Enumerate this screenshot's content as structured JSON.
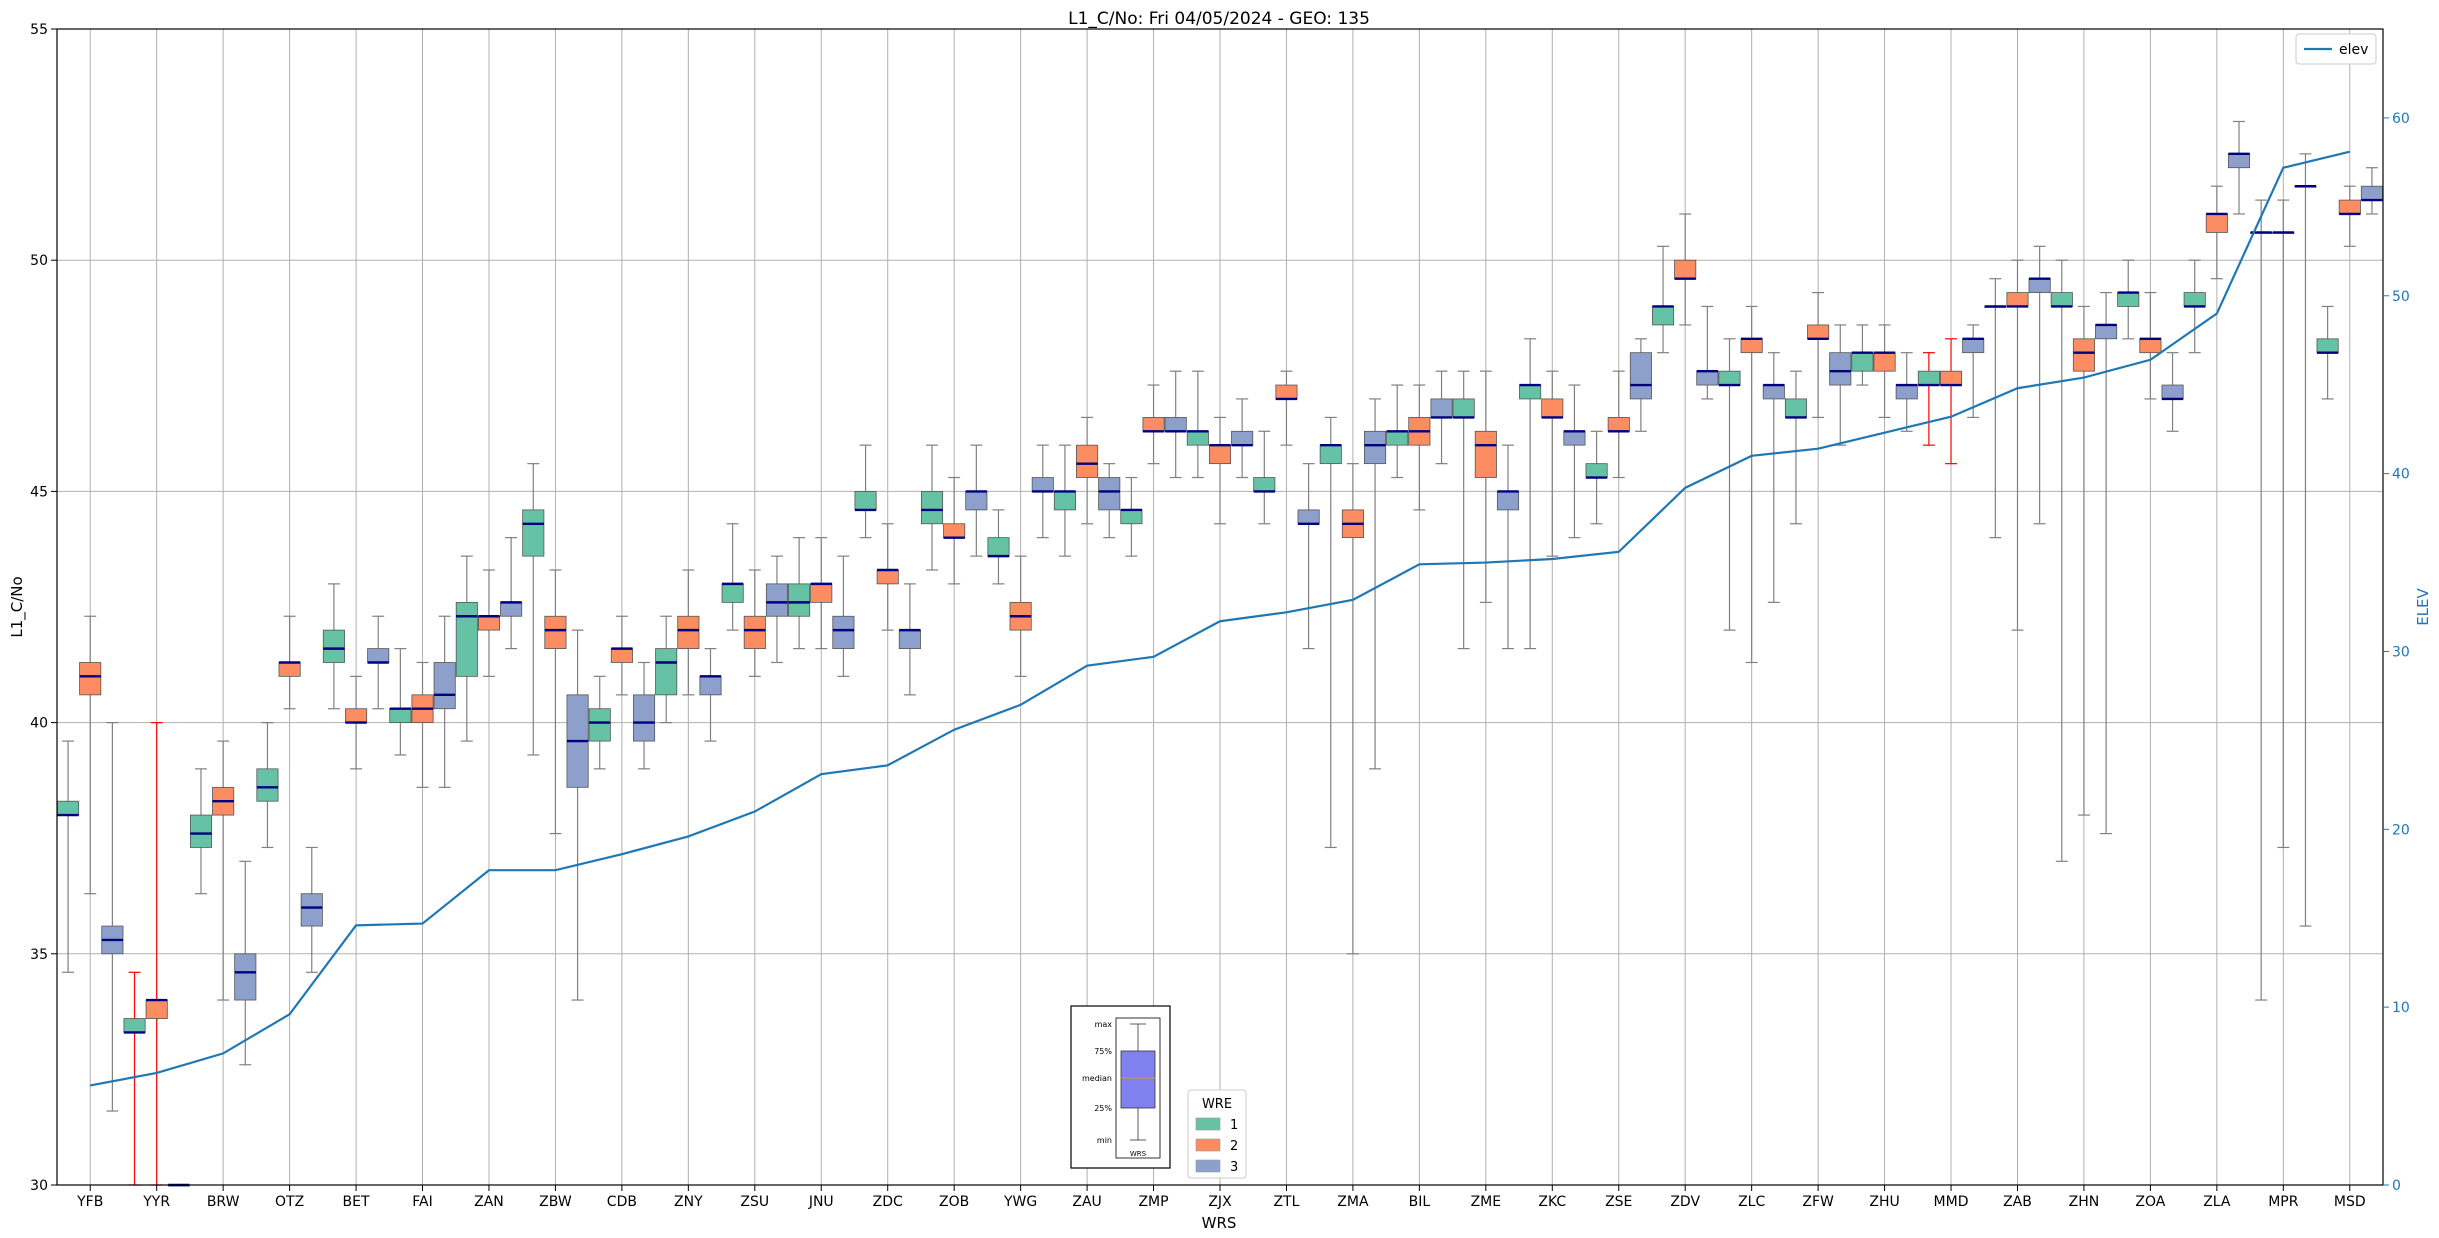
{
  "chart_data": {
    "type": "box",
    "title": "L1_C/No: Fri 04/05/2024 - GEO: 135",
    "xlabel": "WRS",
    "ylabel": "L1_C/No",
    "y2label": "ELEV",
    "ylim": [
      30,
      55
    ],
    "y2lim": [
      0,
      65
    ],
    "yticks": [
      "30",
      "35",
      "40",
      "45",
      "50",
      "55"
    ],
    "y2ticks": [
      "0",
      "10",
      "20",
      "30",
      "40",
      "50",
      "60"
    ],
    "grid": true,
    "categories": [
      "YFB",
      "YYR",
      "BRW",
      "OTZ",
      "BET",
      "FAI",
      "ZAN",
      "ZBW",
      "CDB",
      "ZNY",
      "ZSU",
      "JNU",
      "ZDC",
      "ZOB",
      "YWG",
      "ZAU",
      "ZMP",
      "ZJX",
      "ZTL",
      "ZMA",
      "BIL",
      "ZME",
      "ZKC",
      "ZSE",
      "ZDV",
      "ZLC",
      "ZFW",
      "ZHU",
      "MMD",
      "ZAB",
      "ZHN",
      "ZOA",
      "ZLA",
      "MPR",
      "MSD"
    ],
    "colors": {
      "wre1": "#66c2a5",
      "wre2": "#fc8d62",
      "wre3": "#8da0cb",
      "elev": "#1f77b4",
      "median": "#000080",
      "whisker": "#808080",
      "highlight": "#ff0000"
    },
    "wre_legend": {
      "title": "WRE",
      "entries": [
        "1",
        "2",
        "3"
      ],
      "placement": "bottom-center"
    },
    "elev_legend": {
      "entries": [
        "elev"
      ],
      "placement": "top-right"
    },
    "boxplot_key": {
      "labels": [
        "max",
        "75%",
        "median",
        "25%",
        "min"
      ],
      "xlabel": "WRS"
    },
    "elev": [
      5.6,
      6.3,
      7.4,
      9.6,
      14.6,
      14.7,
      17.7,
      17.7,
      18.6,
      19.6,
      21.0,
      23.1,
      23.6,
      25.6,
      27.0,
      29.2,
      29.7,
      31.7,
      32.2,
      32.9,
      34.9,
      35.0,
      35.2,
      35.6,
      39.2,
      41.0,
      41.4,
      42.3,
      43.2,
      44.8,
      45.4,
      46.4,
      49.0,
      57.2,
      58.1
    ],
    "series": [
      {
        "cat": "YFB",
        "wre": 1,
        "min": 34.6,
        "q1": 38.0,
        "med": 38.0,
        "q3": 38.3,
        "max": 39.6
      },
      {
        "cat": "YFB",
        "wre": 2,
        "min": 36.3,
        "q1": 40.6,
        "med": 41.0,
        "q3": 41.3,
        "max": 42.3
      },
      {
        "cat": "YFB",
        "wre": 3,
        "min": 31.6,
        "q1": 35.0,
        "med": 35.3,
        "q3": 35.6,
        "max": 40.0
      },
      {
        "cat": "YYR",
        "wre": 1,
        "min": 30.0,
        "q1": 33.3,
        "med": 33.3,
        "q3": 33.6,
        "max": 34.6,
        "highlight": true
      },
      {
        "cat": "YYR",
        "wre": 2,
        "min": 30.0,
        "q1": 33.6,
        "med": 34.0,
        "q3": 34.0,
        "max": 40.0,
        "highlight": true
      },
      {
        "cat": "YYR",
        "wre": 3,
        "min": 30.0,
        "q1": 30.0,
        "med": 30.0,
        "q3": 30.0,
        "max": 30.0
      },
      {
        "cat": "BRW",
        "wre": 1,
        "min": 36.3,
        "q1": 37.3,
        "med": 37.6,
        "q3": 38.0,
        "max": 39.0
      },
      {
        "cat": "BRW",
        "wre": 2,
        "min": 34.0,
        "q1": 38.0,
        "med": 38.3,
        "q3": 38.6,
        "max": 39.6
      },
      {
        "cat": "BRW",
        "wre": 3,
        "min": 32.6,
        "q1": 34.0,
        "med": 34.6,
        "q3": 35.0,
        "max": 37.0
      },
      {
        "cat": "OTZ",
        "wre": 1,
        "min": 37.3,
        "q1": 38.3,
        "med": 38.6,
        "q3": 39.0,
        "max": 40.0
      },
      {
        "cat": "OTZ",
        "wre": 2,
        "min": 40.3,
        "q1": 41.0,
        "med": 41.3,
        "q3": 41.3,
        "max": 42.3
      },
      {
        "cat": "OTZ",
        "wre": 3,
        "min": 34.6,
        "q1": 35.6,
        "med": 36.0,
        "q3": 36.3,
        "max": 37.3
      },
      {
        "cat": "BET",
        "wre": 1,
        "min": 40.3,
        "q1": 41.3,
        "med": 41.6,
        "q3": 42.0,
        "max": 43.0
      },
      {
        "cat": "BET",
        "wre": 2,
        "min": 39.0,
        "q1": 40.0,
        "med": 40.0,
        "q3": 40.3,
        "max": 41.0
      },
      {
        "cat": "BET",
        "wre": 3,
        "min": 40.3,
        "q1": 41.3,
        "med": 41.3,
        "q3": 41.6,
        "max": 42.3
      },
      {
        "cat": "FAI",
        "wre": 1,
        "min": 39.3,
        "q1": 40.0,
        "med": 40.3,
        "q3": 40.3,
        "max": 41.6
      },
      {
        "cat": "FAI",
        "wre": 2,
        "min": 38.6,
        "q1": 40.0,
        "med": 40.3,
        "q3": 40.6,
        "max": 41.3
      },
      {
        "cat": "FAI",
        "wre": 3,
        "min": 38.6,
        "q1": 40.3,
        "med": 40.6,
        "q3": 41.3,
        "max": 42.3
      },
      {
        "cat": "ZAN",
        "wre": 1,
        "min": 39.6,
        "q1": 41.0,
        "med": 42.3,
        "q3": 42.6,
        "max": 43.6
      },
      {
        "cat": "ZAN",
        "wre": 2,
        "min": 41.0,
        "q1": 42.0,
        "med": 42.3,
        "q3": 42.3,
        "max": 43.3
      },
      {
        "cat": "ZAN",
        "wre": 3,
        "min": 41.6,
        "q1": 42.3,
        "med": 42.6,
        "q3": 42.6,
        "max": 44.0
      },
      {
        "cat": "ZBW",
        "wre": 1,
        "min": 39.3,
        "q1": 43.6,
        "med": 44.3,
        "q3": 44.6,
        "max": 45.6
      },
      {
        "cat": "ZBW",
        "wre": 2,
        "min": 37.6,
        "q1": 41.6,
        "med": 42.0,
        "q3": 42.3,
        "max": 43.3
      },
      {
        "cat": "ZBW",
        "wre": 3,
        "min": 34.0,
        "q1": 38.6,
        "med": 39.6,
        "q3": 40.6,
        "max": 42.0
      },
      {
        "cat": "CDB",
        "wre": 1,
        "min": 39.0,
        "q1": 39.6,
        "med": 40.0,
        "q3": 40.3,
        "max": 41.0
      },
      {
        "cat": "CDB",
        "wre": 2,
        "min": 40.6,
        "q1": 41.3,
        "med": 41.6,
        "q3": 41.6,
        "max": 42.3
      },
      {
        "cat": "CDB",
        "wre": 3,
        "min": 39.0,
        "q1": 39.6,
        "med": 40.0,
        "q3": 40.6,
        "max": 41.3
      },
      {
        "cat": "ZNY",
        "wre": 1,
        "min": 40.0,
        "q1": 40.6,
        "med": 41.3,
        "q3": 41.6,
        "max": 42.3
      },
      {
        "cat": "ZNY",
        "wre": 2,
        "min": 40.6,
        "q1": 41.6,
        "med": 42.0,
        "q3": 42.3,
        "max": 43.3
      },
      {
        "cat": "ZNY",
        "wre": 3,
        "min": 39.6,
        "q1": 40.6,
        "med": 41.0,
        "q3": 41.0,
        "max": 41.6
      },
      {
        "cat": "ZSU",
        "wre": 1,
        "min": 42.0,
        "q1": 42.6,
        "med": 43.0,
        "q3": 43.0,
        "max": 44.3
      },
      {
        "cat": "ZSU",
        "wre": 2,
        "min": 41.0,
        "q1": 41.6,
        "med": 42.0,
        "q3": 42.3,
        "max": 43.3
      },
      {
        "cat": "ZSU",
        "wre": 3,
        "min": 41.3,
        "q1": 42.3,
        "med": 42.6,
        "q3": 43.0,
        "max": 43.6
      },
      {
        "cat": "JNU",
        "wre": 1,
        "min": 41.6,
        "q1": 42.3,
        "med": 42.6,
        "q3": 43.0,
        "max": 44.0
      },
      {
        "cat": "JNU",
        "wre": 2,
        "min": 41.6,
        "q1": 42.6,
        "med": 43.0,
        "q3": 43.0,
        "max": 44.0
      },
      {
        "cat": "JNU",
        "wre": 3,
        "min": 41.0,
        "q1": 41.6,
        "med": 42.0,
        "q3": 42.3,
        "max": 43.6
      },
      {
        "cat": "ZDC",
        "wre": 1,
        "min": 44.0,
        "q1": 44.6,
        "med": 44.6,
        "q3": 45.0,
        "max": 46.0
      },
      {
        "cat": "ZDC",
        "wre": 2,
        "min": 42.0,
        "q1": 43.0,
        "med": 43.3,
        "q3": 43.3,
        "max": 44.3
      },
      {
        "cat": "ZDC",
        "wre": 3,
        "min": 40.6,
        "q1": 41.6,
        "med": 42.0,
        "q3": 42.0,
        "max": 43.0
      },
      {
        "cat": "ZOB",
        "wre": 1,
        "min": 43.3,
        "q1": 44.3,
        "med": 44.6,
        "q3": 45.0,
        "max": 46.0
      },
      {
        "cat": "ZOB",
        "wre": 2,
        "min": 43.0,
        "q1": 44.0,
        "med": 44.0,
        "q3": 44.3,
        "max": 45.3
      },
      {
        "cat": "ZOB",
        "wre": 3,
        "min": 43.6,
        "q1": 44.6,
        "med": 45.0,
        "q3": 45.0,
        "max": 46.0
      },
      {
        "cat": "YWG",
        "wre": 1,
        "min": 43.0,
        "q1": 43.6,
        "med": 43.6,
        "q3": 44.0,
        "max": 44.6
      },
      {
        "cat": "YWG",
        "wre": 2,
        "min": 41.0,
        "q1": 42.0,
        "med": 42.3,
        "q3": 42.6,
        "max": 43.6
      },
      {
        "cat": "YWG",
        "wre": 3,
        "min": 44.0,
        "q1": 45.0,
        "med": 45.0,
        "q3": 45.3,
        "max": 46.0
      },
      {
        "cat": "ZAU",
        "wre": 1,
        "min": 43.6,
        "q1": 44.6,
        "med": 45.0,
        "q3": 45.0,
        "max": 46.0
      },
      {
        "cat": "ZAU",
        "wre": 2,
        "min": 44.3,
        "q1": 45.3,
        "med": 45.6,
        "q3": 46.0,
        "max": 46.6
      },
      {
        "cat": "ZAU",
        "wre": 3,
        "min": 44.0,
        "q1": 44.6,
        "med": 45.0,
        "q3": 45.3,
        "max": 45.6
      },
      {
        "cat": "ZMP",
        "wre": 1,
        "min": 43.6,
        "q1": 44.3,
        "med": 44.6,
        "q3": 44.6,
        "max": 45.3
      },
      {
        "cat": "ZMP",
        "wre": 2,
        "min": 45.6,
        "q1": 46.3,
        "med": 46.3,
        "q3": 46.6,
        "max": 47.3
      },
      {
        "cat": "ZMP",
        "wre": 3,
        "min": 45.3,
        "q1": 46.3,
        "med": 46.3,
        "q3": 46.6,
        "max": 47.6
      },
      {
        "cat": "ZJX",
        "wre": 1,
        "min": 45.3,
        "q1": 46.0,
        "med": 46.3,
        "q3": 46.3,
        "max": 47.6
      },
      {
        "cat": "ZJX",
        "wre": 2,
        "min": 44.3,
        "q1": 45.6,
        "med": 46.0,
        "q3": 46.0,
        "max": 46.6
      },
      {
        "cat": "ZJX",
        "wre": 3,
        "min": 45.3,
        "q1": 46.0,
        "med": 46.0,
        "q3": 46.3,
        "max": 47.0
      },
      {
        "cat": "ZTL",
        "wre": 1,
        "min": 44.3,
        "q1": 45.0,
        "med": 45.0,
        "q3": 45.3,
        "max": 46.3
      },
      {
        "cat": "ZTL",
        "wre": 2,
        "min": 46.0,
        "q1": 47.0,
        "med": 47.0,
        "q3": 47.3,
        "max": 47.6
      },
      {
        "cat": "ZTL",
        "wre": 3,
        "min": 41.6,
        "q1": 44.3,
        "med": 44.3,
        "q3": 44.6,
        "max": 45.6
      },
      {
        "cat": "ZMA",
        "wre": 1,
        "min": 37.3,
        "q1": 45.6,
        "med": 46.0,
        "q3": 46.0,
        "max": 46.6
      },
      {
        "cat": "ZMA",
        "wre": 2,
        "min": 35.0,
        "q1": 44.0,
        "med": 44.3,
        "q3": 44.6,
        "max": 45.6
      },
      {
        "cat": "ZMA",
        "wre": 3,
        "min": 39.0,
        "q1": 45.6,
        "med": 46.0,
        "q3": 46.3,
        "max": 47.0
      },
      {
        "cat": "BIL",
        "wre": 1,
        "min": 45.3,
        "q1": 46.0,
        "med": 46.3,
        "q3": 46.3,
        "max": 47.3
      },
      {
        "cat": "BIL",
        "wre": 2,
        "min": 44.6,
        "q1": 46.0,
        "med": 46.3,
        "q3": 46.6,
        "max": 47.3
      },
      {
        "cat": "BIL",
        "wre": 3,
        "min": 45.6,
        "q1": 46.6,
        "med": 46.6,
        "q3": 47.0,
        "max": 47.6
      },
      {
        "cat": "ZME",
        "wre": 1,
        "min": 41.6,
        "q1": 46.6,
        "med": 46.6,
        "q3": 47.0,
        "max": 47.6
      },
      {
        "cat": "ZME",
        "wre": 2,
        "min": 42.6,
        "q1": 45.3,
        "med": 46.0,
        "q3": 46.3,
        "max": 47.6
      },
      {
        "cat": "ZME",
        "wre": 3,
        "min": 41.6,
        "q1": 44.6,
        "med": 45.0,
        "q3": 45.0,
        "max": 46.0
      },
      {
        "cat": "ZKC",
        "wre": 1,
        "min": 41.6,
        "q1": 47.0,
        "med": 47.3,
        "q3": 47.3,
        "max": 48.3
      },
      {
        "cat": "ZKC",
        "wre": 2,
        "min": 43.6,
        "q1": 46.6,
        "med": 46.6,
        "q3": 47.0,
        "max": 47.6
      },
      {
        "cat": "ZKC",
        "wre": 3,
        "min": 44.0,
        "q1": 46.0,
        "med": 46.3,
        "q3": 46.3,
        "max": 47.3
      },
      {
        "cat": "ZSE",
        "wre": 1,
        "min": 44.3,
        "q1": 45.3,
        "med": 45.3,
        "q3": 45.6,
        "max": 46.3
      },
      {
        "cat": "ZSE",
        "wre": 2,
        "min": 45.3,
        "q1": 46.3,
        "med": 46.3,
        "q3": 46.6,
        "max": 47.6
      },
      {
        "cat": "ZSE",
        "wre": 3,
        "min": 46.3,
        "q1": 47.0,
        "med": 47.3,
        "q3": 48.0,
        "max": 48.3
      },
      {
        "cat": "ZDV",
        "wre": 1,
        "min": 48.0,
        "q1": 48.6,
        "med": 49.0,
        "q3": 49.0,
        "max": 50.3
      },
      {
        "cat": "ZDV",
        "wre": 2,
        "min": 48.6,
        "q1": 49.6,
        "med": 49.6,
        "q3": 50.0,
        "max": 51.0
      },
      {
        "cat": "ZDV",
        "wre": 3,
        "min": 47.0,
        "q1": 47.3,
        "med": 47.6,
        "q3": 47.6,
        "max": 49.0
      },
      {
        "cat": "ZLC",
        "wre": 1,
        "min": 42.0,
        "q1": 47.3,
        "med": 47.3,
        "q3": 47.6,
        "max": 48.3
      },
      {
        "cat": "ZLC",
        "wre": 2,
        "min": 41.3,
        "q1": 48.0,
        "med": 48.3,
        "q3": 48.3,
        "max": 49.0
      },
      {
        "cat": "ZLC",
        "wre": 3,
        "min": 42.6,
        "q1": 47.0,
        "med": 47.3,
        "q3": 47.3,
        "max": 48.0
      },
      {
        "cat": "ZFW",
        "wre": 1,
        "min": 44.3,
        "q1": 46.6,
        "med": 46.6,
        "q3": 47.0,
        "max": 47.6
      },
      {
        "cat": "ZFW",
        "wre": 2,
        "min": 46.6,
        "q1": 48.3,
        "med": 48.3,
        "q3": 48.6,
        "max": 49.3
      },
      {
        "cat": "ZFW",
        "wre": 3,
        "min": 46.0,
        "q1": 47.3,
        "med": 47.6,
        "q3": 48.0,
        "max": 48.6
      },
      {
        "cat": "ZHU",
        "wre": 1,
        "min": 47.3,
        "q1": 47.6,
        "med": 48.0,
        "q3": 48.0,
        "max": 48.6
      },
      {
        "cat": "ZHU",
        "wre": 2,
        "min": 46.6,
        "q1": 47.6,
        "med": 48.0,
        "q3": 48.0,
        "max": 48.6
      },
      {
        "cat": "ZHU",
        "wre": 3,
        "min": 46.3,
        "q1": 47.0,
        "med": 47.3,
        "q3": 47.3,
        "max": 48.0
      },
      {
        "cat": "MMD",
        "wre": 1,
        "min": 46.0,
        "q1": 47.3,
        "med": 47.3,
        "q3": 47.6,
        "max": 48.0,
        "highlight": true
      },
      {
        "cat": "MMD",
        "wre": 2,
        "min": 45.6,
        "q1": 47.3,
        "med": 47.3,
        "q3": 47.6,
        "max": 48.3,
        "highlight": true
      },
      {
        "cat": "MMD",
        "wre": 3,
        "min": 46.6,
        "q1": 48.0,
        "med": 48.3,
        "q3": 48.3,
        "max": 48.6
      },
      {
        "cat": "ZAB",
        "wre": 1,
        "min": 44.0,
        "q1": 49.0,
        "med": 49.0,
        "q3": 49.0,
        "max": 49.6
      },
      {
        "cat": "ZAB",
        "wre": 2,
        "min": 42.0,
        "q1": 49.0,
        "med": 49.0,
        "q3": 49.3,
        "max": 50.0
      },
      {
        "cat": "ZAB",
        "wre": 3,
        "min": 44.3,
        "q1": 49.3,
        "med": 49.6,
        "q3": 49.6,
        "max": 50.3
      },
      {
        "cat": "ZHN",
        "wre": 1,
        "min": 37.0,
        "q1": 49.0,
        "med": 49.0,
        "q3": 49.3,
        "max": 50.0
      },
      {
        "cat": "ZHN",
        "wre": 2,
        "min": 38.0,
        "q1": 47.6,
        "med": 48.0,
        "q3": 48.3,
        "max": 49.0
      },
      {
        "cat": "ZHN",
        "wre": 3,
        "min": 37.6,
        "q1": 48.3,
        "med": 48.6,
        "q3": 48.6,
        "max": 49.3
      },
      {
        "cat": "ZOA",
        "wre": 1,
        "min": 48.3,
        "q1": 49.0,
        "med": 49.3,
        "q3": 49.3,
        "max": 50.0
      },
      {
        "cat": "ZOA",
        "wre": 2,
        "min": 47.0,
        "q1": 48.0,
        "med": 48.3,
        "q3": 48.3,
        "max": 49.3
      },
      {
        "cat": "ZOA",
        "wre": 3,
        "min": 46.3,
        "q1": 47.0,
        "med": 47.0,
        "q3": 47.3,
        "max": 48.0
      },
      {
        "cat": "ZLA",
        "wre": 1,
        "min": 48.0,
        "q1": 49.0,
        "med": 49.0,
        "q3": 49.3,
        "max": 50.0
      },
      {
        "cat": "ZLA",
        "wre": 2,
        "min": 49.6,
        "q1": 50.6,
        "med": 51.0,
        "q3": 51.0,
        "max": 51.6
      },
      {
        "cat": "ZLA",
        "wre": 3,
        "min": 51.0,
        "q1": 52.0,
        "med": 52.3,
        "q3": 52.3,
        "max": 53.0
      },
      {
        "cat": "MPR",
        "wre": 1,
        "min": 34.0,
        "q1": 50.6,
        "med": 50.6,
        "q3": 50.6,
        "max": 51.3
      },
      {
        "cat": "MPR",
        "wre": 2,
        "min": 37.3,
        "q1": 50.6,
        "med": 50.6,
        "q3": 50.6,
        "max": 51.3
      },
      {
        "cat": "MPR",
        "wre": 3,
        "min": 35.6,
        "q1": 51.6,
        "med": 51.6,
        "q3": 51.6,
        "max": 52.3
      },
      {
        "cat": "MSD",
        "wre": 1,
        "min": 47.0,
        "q1": 48.0,
        "med": 48.0,
        "q3": 48.3,
        "max": 49.0
      },
      {
        "cat": "MSD",
        "wre": 2,
        "min": 50.3,
        "q1": 51.0,
        "med": 51.0,
        "q3": 51.3,
        "max": 51.6
      },
      {
        "cat": "MSD",
        "wre": 3,
        "min": 51.0,
        "q1": 51.3,
        "med": 51.3,
        "q3": 51.6,
        "max": 52.0
      }
    ]
  }
}
